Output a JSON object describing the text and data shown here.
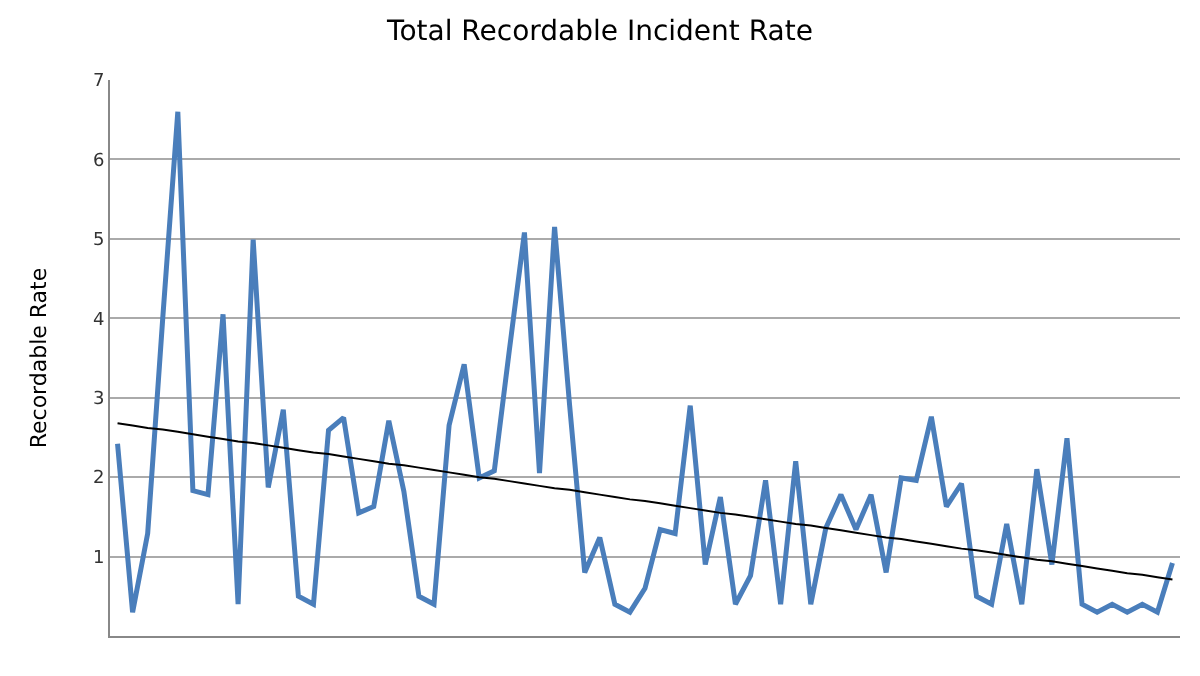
{
  "chart_data": {
    "type": "line",
    "title": "Total Recordable Incident Rate",
    "ylabel": "Recordable Rate",
    "categories": [
      null,
      null,
      null,
      null,
      null,
      null,
      null,
      null,
      null,
      null,
      null,
      null,
      null,
      null,
      null,
      null,
      null,
      null,
      null,
      null,
      null,
      null,
      null,
      null,
      null,
      null,
      null,
      null,
      null,
      null,
      null,
      null,
      null,
      null,
      null,
      null,
      null,
      null,
      null,
      null,
      null,
      null,
      null,
      null,
      null,
      null,
      null,
      null,
      null,
      null,
      null,
      null,
      null,
      null,
      null,
      null,
      null,
      null,
      null,
      null,
      null,
      null,
      null,
      null,
      null,
      null,
      null,
      null,
      null,
      null,
      null
    ],
    "series": [
      {
        "color": "#4a7ebb",
        "values": [
          2.42,
          0.3,
          1.29,
          4.0,
          6.6,
          1.83,
          1.78,
          4.05,
          0.4,
          4.99,
          1.87,
          2.85,
          0.5,
          0.4,
          2.59,
          2.75,
          1.55,
          1.63,
          2.71,
          1.82,
          0.5,
          0.4,
          2.65,
          3.42,
          1.99,
          2.08,
          3.6,
          5.08,
          2.05,
          5.15,
          2.9,
          0.8,
          1.24,
          0.4,
          0.3,
          0.6,
          1.34,
          1.29,
          2.9,
          0.9,
          1.75,
          0.4,
          0.76,
          1.96,
          0.4,
          2.2,
          0.4,
          1.36,
          1.78,
          1.34,
          1.78,
          0.8,
          1.99,
          1.96,
          2.76,
          1.63,
          1.92,
          0.5,
          0.4,
          1.41,
          0.4,
          2.1,
          0.9,
          2.49,
          0.4,
          0.3,
          0.4,
          0.3,
          0.4,
          0.3,
          0.92
        ]
      },
      {
        "type": "line",
        "color": "#000000",
        "values": [
          2.68,
          2.65,
          2.62,
          2.6,
          2.57,
          2.54,
          2.51,
          2.48,
          2.45,
          2.43,
          2.4,
          2.37,
          2.34,
          2.31,
          2.29,
          2.26,
          2.23,
          2.2,
          2.17,
          2.15,
          2.12,
          2.09,
          2.06,
          2.03,
          2.0,
          1.98,
          1.95,
          1.92,
          1.89,
          1.86,
          1.84,
          1.81,
          1.78,
          1.75,
          1.72,
          1.7,
          1.67,
          1.64,
          1.61,
          1.58,
          1.55,
          1.53,
          1.5,
          1.47,
          1.44,
          1.41,
          1.39,
          1.36,
          1.33,
          1.3,
          1.27,
          1.24,
          1.22,
          1.19,
          1.16,
          1.13,
          1.1,
          1.08,
          1.05,
          1.02,
          0.99,
          0.96,
          0.94,
          0.91,
          0.88,
          0.85,
          0.82,
          0.79,
          0.77,
          0.74,
          0.71
        ]
      }
    ],
    "ylim": [
      0,
      7
    ],
    "yticks": [
      1,
      2,
      3,
      4,
      5,
      6,
      7
    ],
    "grid": "y",
    "tick_labels": "y",
    "marker": "none",
    "line_style": "solid"
  }
}
